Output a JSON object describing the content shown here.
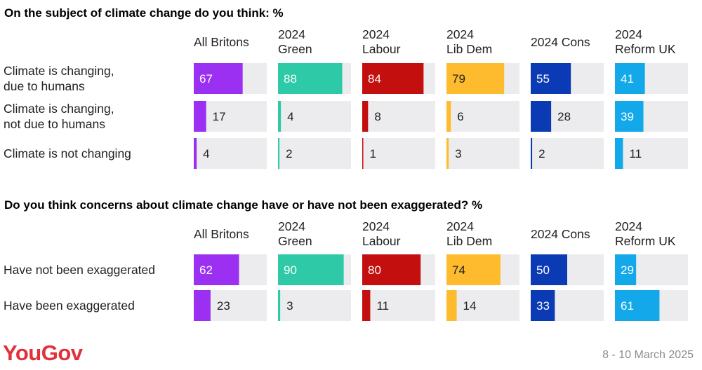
{
  "brand": "YouGov",
  "date": "8 - 10 March 2025",
  "columns": [
    "All Britons",
    "2024 Green",
    "2024 Labour",
    "2024 Lib Dem",
    "2024 Cons",
    "2024 Reform UK"
  ],
  "colors": {
    "All Britons": "#9b30f2",
    "2024 Green": "#2ec9a6",
    "2024 Labour": "#c40f0f",
    "2024 Lib Dem": "#fdbb2d",
    "2024 Cons": "#0a3bb5",
    "2024 Reform UK": "#12a8ea",
    "track": "#ececee",
    "logo": "#e0323c"
  },
  "chart_data": [
    {
      "type": "bar",
      "title": "On the subject of climate change do you think: %",
      "columns": [
        "All Britons",
        "2024 Green",
        "2024 Labour",
        "2024 Lib Dem",
        "2024 Cons",
        "2024 Reform UK"
      ],
      "categories": [
        "Climate is changing, due to humans",
        "Climate is changing, not due to humans",
        "Climate is not changing"
      ],
      "category_lines": [
        [
          "Climate is changing,",
          "due to humans"
        ],
        [
          "Climate is changing,",
          "not due to humans"
        ],
        [
          "Climate is not changing"
        ]
      ],
      "values": [
        [
          67,
          88,
          84,
          79,
          55,
          41
        ],
        [
          17,
          4,
          8,
          6,
          28,
          39
        ],
        [
          4,
          2,
          1,
          3,
          2,
          11
        ]
      ],
      "xlim": [
        0,
        100
      ]
    },
    {
      "type": "bar",
      "title": "Do you think concerns about climate change have or have not been exaggerated? %",
      "columns": [
        "All Britons",
        "2024 Green",
        "2024 Labour",
        "2024 Lib Dem",
        "2024 Cons",
        "2024 Reform UK"
      ],
      "categories": [
        "Have not been exaggerated",
        "Have been exaggerated"
      ],
      "category_lines": [
        [
          "Have not been exaggerated"
        ],
        [
          "Have been exaggerated"
        ]
      ],
      "values": [
        [
          62,
          90,
          80,
          74,
          50,
          29
        ],
        [
          23,
          3,
          11,
          14,
          33,
          61
        ]
      ],
      "xlim": [
        0,
        100
      ]
    }
  ]
}
